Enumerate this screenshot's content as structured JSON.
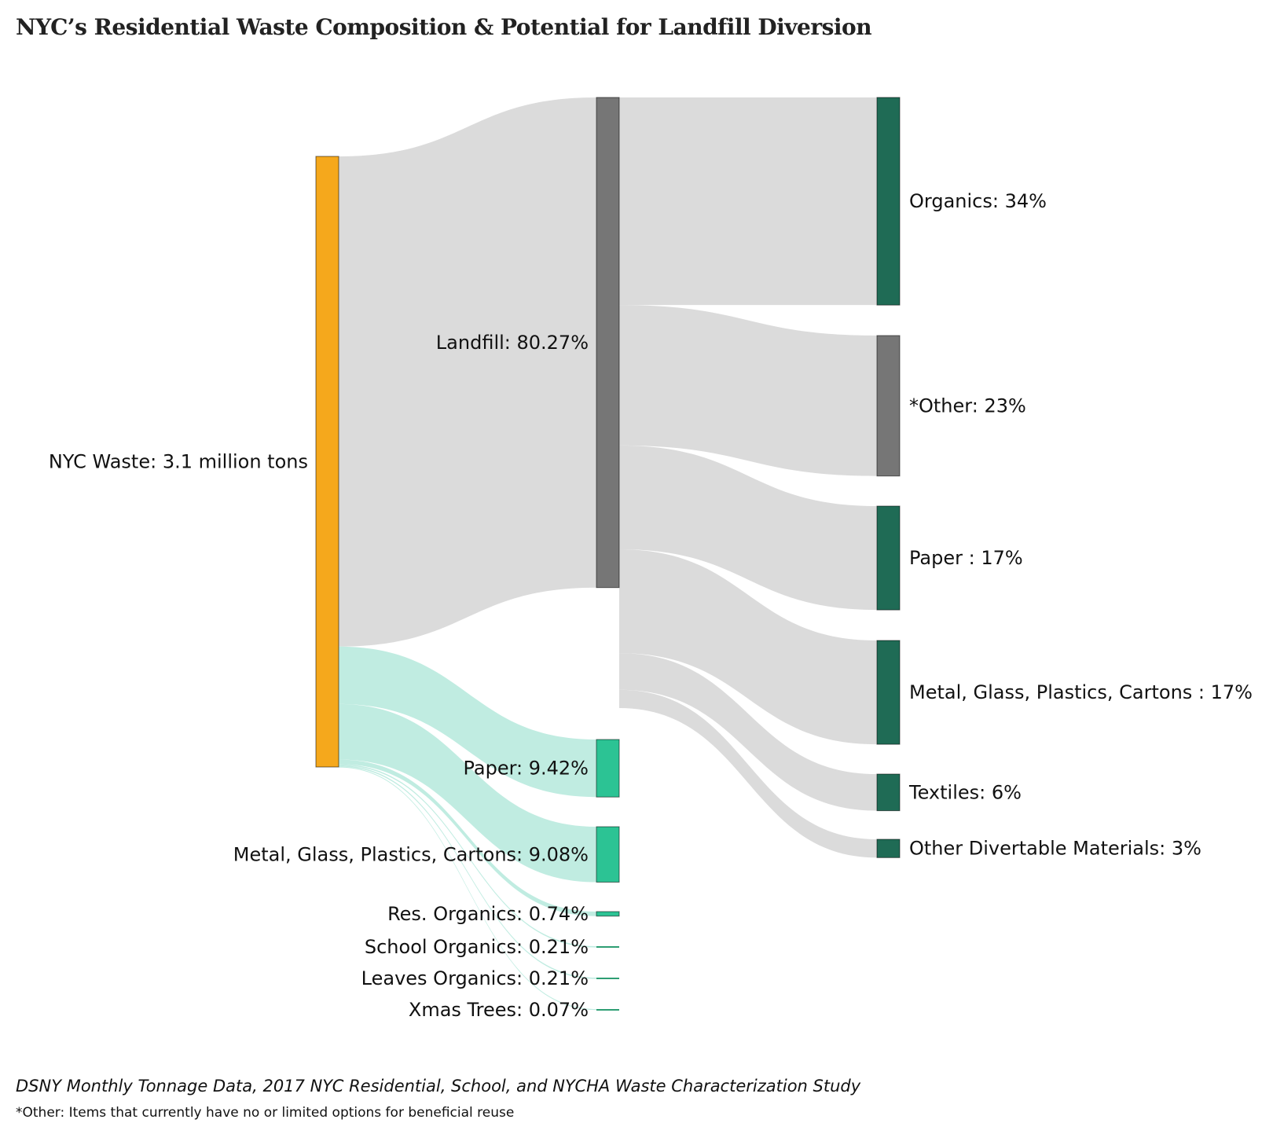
{
  "title": "NYC’s Residential Waste Composition & Potential for Landfill Diversion",
  "source": "DSNY Monthly Tonnage Data, 2017 NYC Residential, School, and NYCHA Waste Characterization Study",
  "footnote": "*Other: Items that currently have no or limited options for beneficial reuse",
  "colors": {
    "source_node": "#F5A81C",
    "landfill_node": "#767676",
    "diversion_node": "#2CC394",
    "small_diversion_node": "#2E9E73",
    "material_node": "#1F6B55",
    "landfill_link": "#D9D9D9",
    "diversion_link": "#BDEBDF"
  },
  "chart_data": {
    "type": "sankey",
    "nodes": [
      {
        "id": "nyc",
        "label": "NYC Waste: 3.1 million tons",
        "value": 100,
        "color_key": "source_node"
      },
      {
        "id": "landfill",
        "label": "Landfill: 80.27%",
        "value": 80.27,
        "color_key": "landfill_node"
      },
      {
        "id": "paper_div",
        "label": "Paper: 9.42%",
        "value": 9.42,
        "color_key": "diversion_node"
      },
      {
        "id": "mgpc_div",
        "label": "Metal, Glass, Plastics, Cartons: 9.08%",
        "value": 9.08,
        "color_key": "diversion_node"
      },
      {
        "id": "res_org",
        "label": "Res. Organics: 0.74%",
        "value": 0.74,
        "color_key": "diversion_node"
      },
      {
        "id": "school_org",
        "label": "School Organics: 0.21%",
        "value": 0.21,
        "color_key": "small_diversion_node"
      },
      {
        "id": "leaves_org",
        "label": "Leaves Organics: 0.21%",
        "value": 0.21,
        "color_key": "small_diversion_node"
      },
      {
        "id": "xmas",
        "label": "Xmas Trees: 0.07%",
        "value": 0.07,
        "color_key": "small_diversion_node"
      },
      {
        "id": "organics",
        "label": "Organics: 34%",
        "value": 34,
        "color_key": "material_node"
      },
      {
        "id": "other",
        "label": "*Other: 23%",
        "value": 23,
        "color_key": "landfill_node"
      },
      {
        "id": "paper_lf",
        "label": "Paper : 17%",
        "value": 17,
        "color_key": "material_node"
      },
      {
        "id": "mgpc_lf",
        "label": "Metal, Glass, Plastics, Cartons : 17%",
        "value": 17,
        "color_key": "material_node"
      },
      {
        "id": "textiles",
        "label": "Textiles: 6%",
        "value": 6,
        "color_key": "material_node"
      },
      {
        "id": "other_div",
        "label": "Other Divertable Materials: 3%",
        "value": 3,
        "color_key": "material_node"
      }
    ],
    "links": [
      {
        "source": "nyc",
        "target": "landfill",
        "value": 80.27
      },
      {
        "source": "nyc",
        "target": "paper_div",
        "value": 9.42
      },
      {
        "source": "nyc",
        "target": "mgpc_div",
        "value": 9.08
      },
      {
        "source": "nyc",
        "target": "res_org",
        "value": 0.74
      },
      {
        "source": "nyc",
        "target": "school_org",
        "value": 0.21
      },
      {
        "source": "nyc",
        "target": "leaves_org",
        "value": 0.21
      },
      {
        "source": "nyc",
        "target": "xmas",
        "value": 0.07
      },
      {
        "source": "landfill",
        "target": "organics",
        "value": 34
      },
      {
        "source": "landfill",
        "target": "other",
        "value": 23
      },
      {
        "source": "landfill",
        "target": "paper_lf",
        "value": 17
      },
      {
        "source": "landfill",
        "target": "mgpc_lf",
        "value": 17
      },
      {
        "source": "landfill",
        "target": "textiles",
        "value": 6
      },
      {
        "source": "landfill",
        "target": "other_div",
        "value": 3
      }
    ]
  }
}
